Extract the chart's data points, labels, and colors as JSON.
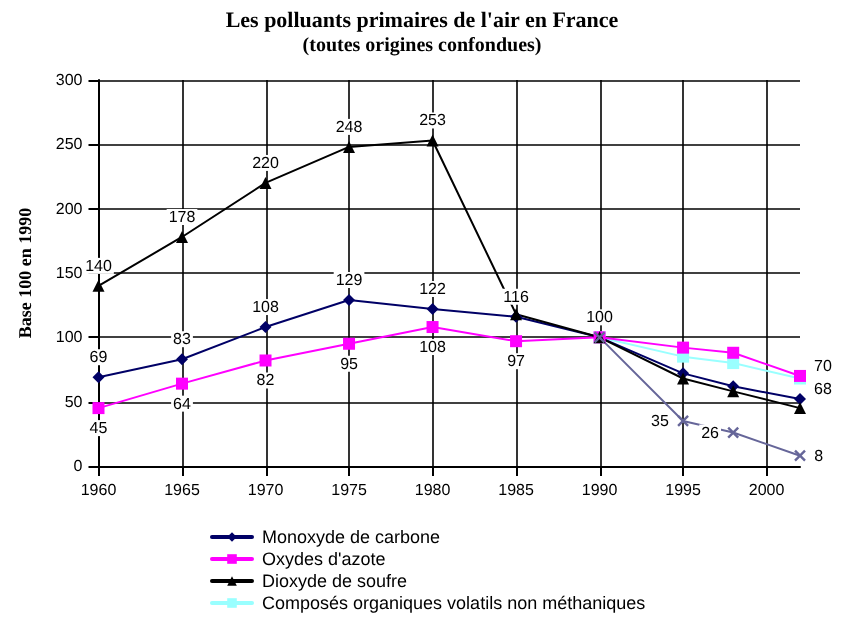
{
  "chart_data": {
    "type": "line",
    "title": "Les polluants primaires de l'air en France",
    "subtitle": "(toutes origines confondues)",
    "ylabel": "Base 100 en 1990",
    "x": [
      1960,
      1965,
      1970,
      1975,
      1980,
      1985,
      1990,
      1995,
      1998,
      2002
    ],
    "series": [
      {
        "name": "Monoxyde de carbone",
        "color": "#000066",
        "marker": "diamond",
        "values": [
          69,
          83,
          108,
          129,
          122,
          116,
          100,
          72,
          62,
          52
        ],
        "value_labels": [
          "69",
          "83",
          "108",
          "129",
          "122",
          "116",
          "100",
          null,
          null,
          null
        ]
      },
      {
        "name": "Oxydes d'azote",
        "color": "#ff00ff",
        "marker": "square",
        "values": [
          45,
          64,
          82,
          95,
          108,
          97,
          100,
          92,
          88,
          70
        ],
        "value_labels": [
          "45",
          "64",
          "82",
          "95",
          "108",
          "97",
          null,
          null,
          null,
          "70"
        ]
      },
      {
        "name": "Dioxyde de soufre",
        "color": "#000000",
        "marker": "triangle",
        "values": [
          140,
          178,
          220,
          248,
          253,
          118,
          100,
          68,
          58,
          45
        ],
        "value_labels": [
          "140",
          "178",
          "220",
          "248",
          "253",
          null,
          null,
          null,
          null,
          null
        ]
      },
      {
        "name": "Composés organiques volatils non méthaniques",
        "color": "#99ffff",
        "marker": "square",
        "values": [
          null,
          null,
          null,
          null,
          null,
          null,
          100,
          85,
          80,
          68
        ],
        "value_labels": [
          null,
          null,
          null,
          null,
          null,
          null,
          null,
          null,
          null,
          "68"
        ]
      },
      {
        "color": "#666699",
        "marker": "cross",
        "values": [
          null,
          null,
          null,
          null,
          null,
          null,
          100,
          35,
          26,
          8
        ],
        "value_labels": [
          null,
          null,
          null,
          null,
          null,
          null,
          null,
          "35",
          "26",
          "8"
        ]
      }
    ],
    "xlim": [
      1960,
      2002
    ],
    "xticks": [
      1960,
      1965,
      1970,
      1975,
      1980,
      1985,
      1990,
      1995,
      2000
    ],
    "ylim": [
      0,
      300
    ],
    "yticks": [
      0,
      50,
      100,
      150,
      200,
      250,
      300
    ],
    "grid": true,
    "legend": "bottom"
  }
}
